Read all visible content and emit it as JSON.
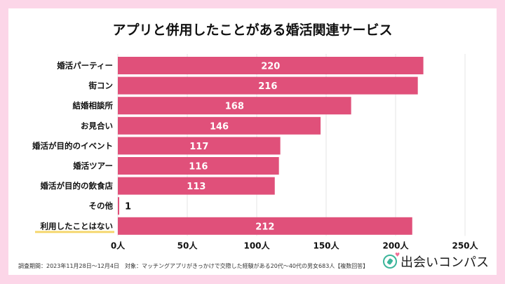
{
  "chart_data": {
    "type": "bar",
    "orientation": "horizontal",
    "title": "アプリと併用したことがある婚活関連サービス",
    "categories": [
      "婚活パーティー",
      "街コン",
      "結婚相談所",
      "お見合い",
      "婚活が目的のイベント",
      "婚活ツアー",
      "婚活が目的の飲食店",
      "その他",
      "利用したことはない"
    ],
    "values": [
      220,
      216,
      168,
      146,
      117,
      116,
      113,
      1,
      212
    ],
    "xlim": [
      0,
      250
    ],
    "xticks": [
      "0人",
      "50人",
      "100人",
      "150人",
      "200人",
      "250人"
    ],
    "grid": true,
    "bar_color": "#e0507a",
    "highlight_category": "利用したことはない",
    "highlight_color": "#f5d76e"
  },
  "footer": {
    "note": "調査期間：2023年11月28日〜12月4日　対象：マッチングアプリがきっかけで交際した経験がある20代〜40代の男女683人【複数回答】"
  },
  "logo": {
    "text": "出会いコンパス",
    "icon": "compass-heart-icon"
  }
}
